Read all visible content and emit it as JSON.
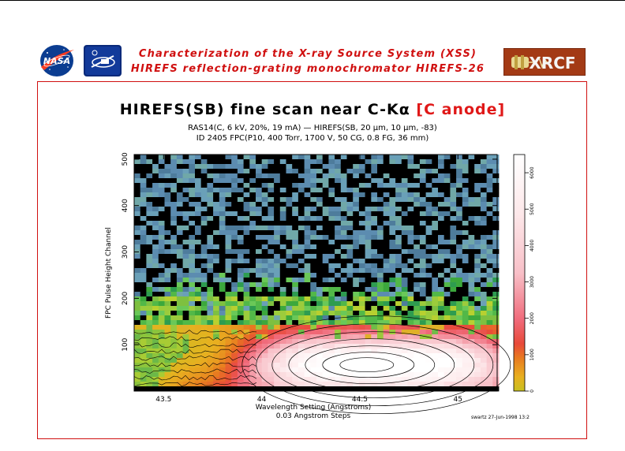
{
  "header": {
    "line1": "Characterization of the X-ray Source System (XSS)",
    "line2": "HIREFS reflection-grating monochromator  HIREFS-26"
  },
  "logos": {
    "nasa": "NASA",
    "xrcf": "XRCF"
  },
  "colors": {
    "header_red": "#d01010",
    "title_red": "#e01818",
    "frame_red": "#d01010"
  },
  "chart_data": {
    "type": "heatmap",
    "title": "HIREFS(SB) fine scan near C-Kα",
    "title_highlight": "[C anode]",
    "subtitle1": "RAS14(C, 6 kV, 20%, 19 mA) — HIREFS(SB, 20 μm, 10 μm, -83)",
    "subtitle2": "ID 2405 FPC(P10, 400 Torr, 1700 V, 50 CG, 0.8 FG, 36 mm)",
    "xlabel": "Wavelength Setting (Angstroms)",
    "xlabel2": "0.03 Angstrom Steps",
    "ylabel": "FPC Pulse Height Channel",
    "xlim": [
      43.35,
      45.2
    ],
    "ylim": [
      0,
      510
    ],
    "xticks": [
      43.5,
      44,
      44.5,
      45
    ],
    "xtick_labels": [
      "43.5",
      "44",
      "44.5",
      "45"
    ],
    "yticks": [
      100,
      200,
      300,
      400,
      500
    ],
    "ytick_labels": [
      "100",
      "200",
      "300",
      "400",
      "500"
    ],
    "colorbar": {
      "range": [
        0,
        6500
      ],
      "ticks": [
        0,
        1000,
        2000,
        3000,
        4000,
        5000,
        6000
      ],
      "tick_labels": [
        "0",
        "1000",
        "2000",
        "3000",
        "4000",
        "5000",
        "6000"
      ]
    },
    "peak": {
      "x": 44.6,
      "y": 60,
      "counts": 6500
    },
    "contours": true,
    "grid": false,
    "footer_note": "swartz 27-Jun-1998 13:2"
  }
}
